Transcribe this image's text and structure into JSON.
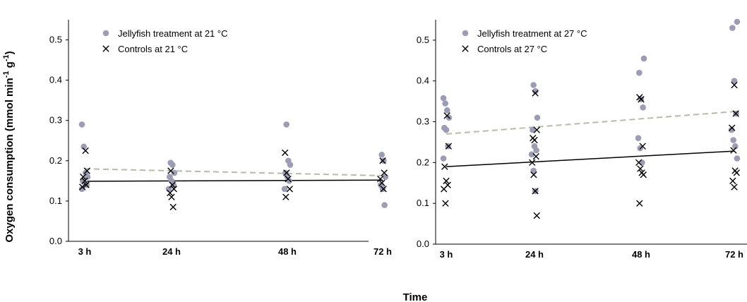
{
  "figure": {
    "ylabel_main": "Oxygen consumption (mmol  min",
    "ylabel_sup1": "-1",
    "ylabel_mid": " g",
    "ylabel_sup2": "-1",
    "ylabel_end": ")",
    "xlabel": "Time"
  },
  "colors": {
    "jellyfish": "#9c9cb4",
    "controls": "#000000",
    "jelly_trend": "#b4bca8",
    "control_trend": "#000000"
  },
  "chart_data": [
    {
      "type": "scatter",
      "categories": [
        "3 h",
        "24 h",
        "48 h",
        "72 h"
      ],
      "ylim": [
        0,
        0.55
      ],
      "yticks": [
        "0.0",
        "0.1",
        "0.2",
        "0.3",
        "0.4",
        "0.5"
      ],
      "yticks_values": [
        0,
        0.1,
        0.2,
        0.3,
        0.4,
        0.5
      ],
      "legend_position": "top-left",
      "series": [
        {
          "name": "Jellyfish treatment at 21 °C",
          "marker": "circle",
          "points": [
            [
              0,
              0.29
            ],
            [
              0,
              0.235
            ],
            [
              0,
              0.17
            ],
            [
              0,
              0.16
            ],
            [
              0,
              0.15
            ],
            [
              0,
              0.145
            ],
            [
              0,
              0.14
            ],
            [
              0,
              0.13
            ],
            [
              1,
              0.195
            ],
            [
              1,
              0.19
            ],
            [
              1,
              0.17
            ],
            [
              1,
              0.16
            ],
            [
              1,
              0.15
            ],
            [
              1,
              0.14
            ],
            [
              1,
              0.13
            ],
            [
              2,
              0.29
            ],
            [
              2,
              0.2
            ],
            [
              2,
              0.19
            ],
            [
              2,
              0.17
            ],
            [
              2,
              0.16
            ],
            [
              2,
              0.15
            ],
            [
              2,
              0.13
            ],
            [
              3,
              0.215
            ],
            [
              3,
              0.2
            ],
            [
              3,
              0.16
            ],
            [
              3,
              0.14
            ],
            [
              3,
              0.13
            ],
            [
              3,
              0.09
            ]
          ]
        },
        {
          "name": "Controls at 21 °C",
          "marker": "x",
          "points": [
            [
              0,
              0.225
            ],
            [
              0,
              0.175
            ],
            [
              0,
              0.16
            ],
            [
              0,
              0.15
            ],
            [
              0,
              0.14
            ],
            [
              0,
              0.135
            ],
            [
              1,
              0.175
            ],
            [
              1,
              0.14
            ],
            [
              1,
              0.13
            ],
            [
              1,
              0.12
            ],
            [
              1,
              0.11
            ],
            [
              1,
              0.085
            ],
            [
              2,
              0.22
            ],
            [
              2,
              0.17
            ],
            [
              2,
              0.155
            ],
            [
              2,
              0.13
            ],
            [
              2,
              0.11
            ],
            [
              3,
              0.2
            ],
            [
              3,
              0.17
            ],
            [
              3,
              0.155
            ],
            [
              3,
              0.145
            ],
            [
              3,
              0.13
            ]
          ]
        }
      ],
      "trendlines": [
        {
          "series": "Jellyfish treatment at 21 °C",
          "style": "dashed",
          "start": 0.18,
          "end": 0.163
        },
        {
          "series": "Controls at 21 °C",
          "style": "solid",
          "start": 0.149,
          "end": 0.152
        }
      ]
    },
    {
      "type": "scatter",
      "categories": [
        "3 h",
        "24 h",
        "48 h",
        "72 h"
      ],
      "ylim": [
        0,
        0.55
      ],
      "yticks": [
        "0.0",
        "0.1",
        "0.2",
        "0.3",
        "0.4",
        "0.5"
      ],
      "yticks_values": [
        0,
        0.1,
        0.2,
        0.3,
        0.4,
        0.5
      ],
      "legend_position": "top-left",
      "series": [
        {
          "name": "Jellyfish treatment at 27 °C",
          "marker": "circle",
          "points": [
            [
              0,
              0.358
            ],
            [
              0,
              0.345
            ],
            [
              0,
              0.328
            ],
            [
              0,
              0.31
            ],
            [
              0,
              0.285
            ],
            [
              0,
              0.28
            ],
            [
              0,
              0.24
            ],
            [
              0,
              0.21
            ],
            [
              1,
              0.39
            ],
            [
              1,
              0.375
            ],
            [
              1,
              0.31
            ],
            [
              1,
              0.28
            ],
            [
              1,
              0.24
            ],
            [
              1,
              0.23
            ],
            [
              1,
              0.22
            ],
            [
              1,
              0.18
            ],
            [
              1,
              0.13
            ],
            [
              2,
              0.455
            ],
            [
              2,
              0.42
            ],
            [
              2,
              0.355
            ],
            [
              2,
              0.335
            ],
            [
              2,
              0.26
            ],
            [
              2,
              0.235
            ],
            [
              2,
              0.2
            ],
            [
              3,
              0.545
            ],
            [
              3,
              0.53
            ],
            [
              3,
              0.4
            ],
            [
              3,
              0.32
            ],
            [
              3,
              0.28
            ],
            [
              3,
              0.255
            ],
            [
              3,
              0.24
            ],
            [
              3,
              0.21
            ]
          ]
        },
        {
          "name": "Controls at 27 °C",
          "marker": "x",
          "points": [
            [
              0,
              0.315
            ],
            [
              0,
              0.24
            ],
            [
              0,
              0.19
            ],
            [
              0,
              0.155
            ],
            [
              0,
              0.145
            ],
            [
              0,
              0.135
            ],
            [
              0,
              0.1
            ],
            [
              1,
              0.37
            ],
            [
              1,
              0.28
            ],
            [
              1,
              0.26
            ],
            [
              1,
              0.255
            ],
            [
              1,
              0.215
            ],
            [
              1,
              0.2
            ],
            [
              1,
              0.17
            ],
            [
              1,
              0.13
            ],
            [
              1,
              0.07
            ],
            [
              2,
              0.36
            ],
            [
              2,
              0.355
            ],
            [
              2,
              0.24
            ],
            [
              2,
              0.2
            ],
            [
              2,
              0.185
            ],
            [
              2,
              0.175
            ],
            [
              2,
              0.17
            ],
            [
              2,
              0.1
            ],
            [
              3,
              0.39
            ],
            [
              3,
              0.32
            ],
            [
              3,
              0.285
            ],
            [
              3,
              0.23
            ],
            [
              3,
              0.18
            ],
            [
              3,
              0.175
            ],
            [
              3,
              0.155
            ],
            [
              3,
              0.14
            ]
          ]
        }
      ],
      "trendlines": [
        {
          "series": "Jellyfish treatment at 27 °C",
          "style": "dashed",
          "start": 0.27,
          "end": 0.325
        },
        {
          "series": "Controls at 27 °C",
          "style": "solid",
          "start": 0.19,
          "end": 0.228
        }
      ]
    }
  ]
}
